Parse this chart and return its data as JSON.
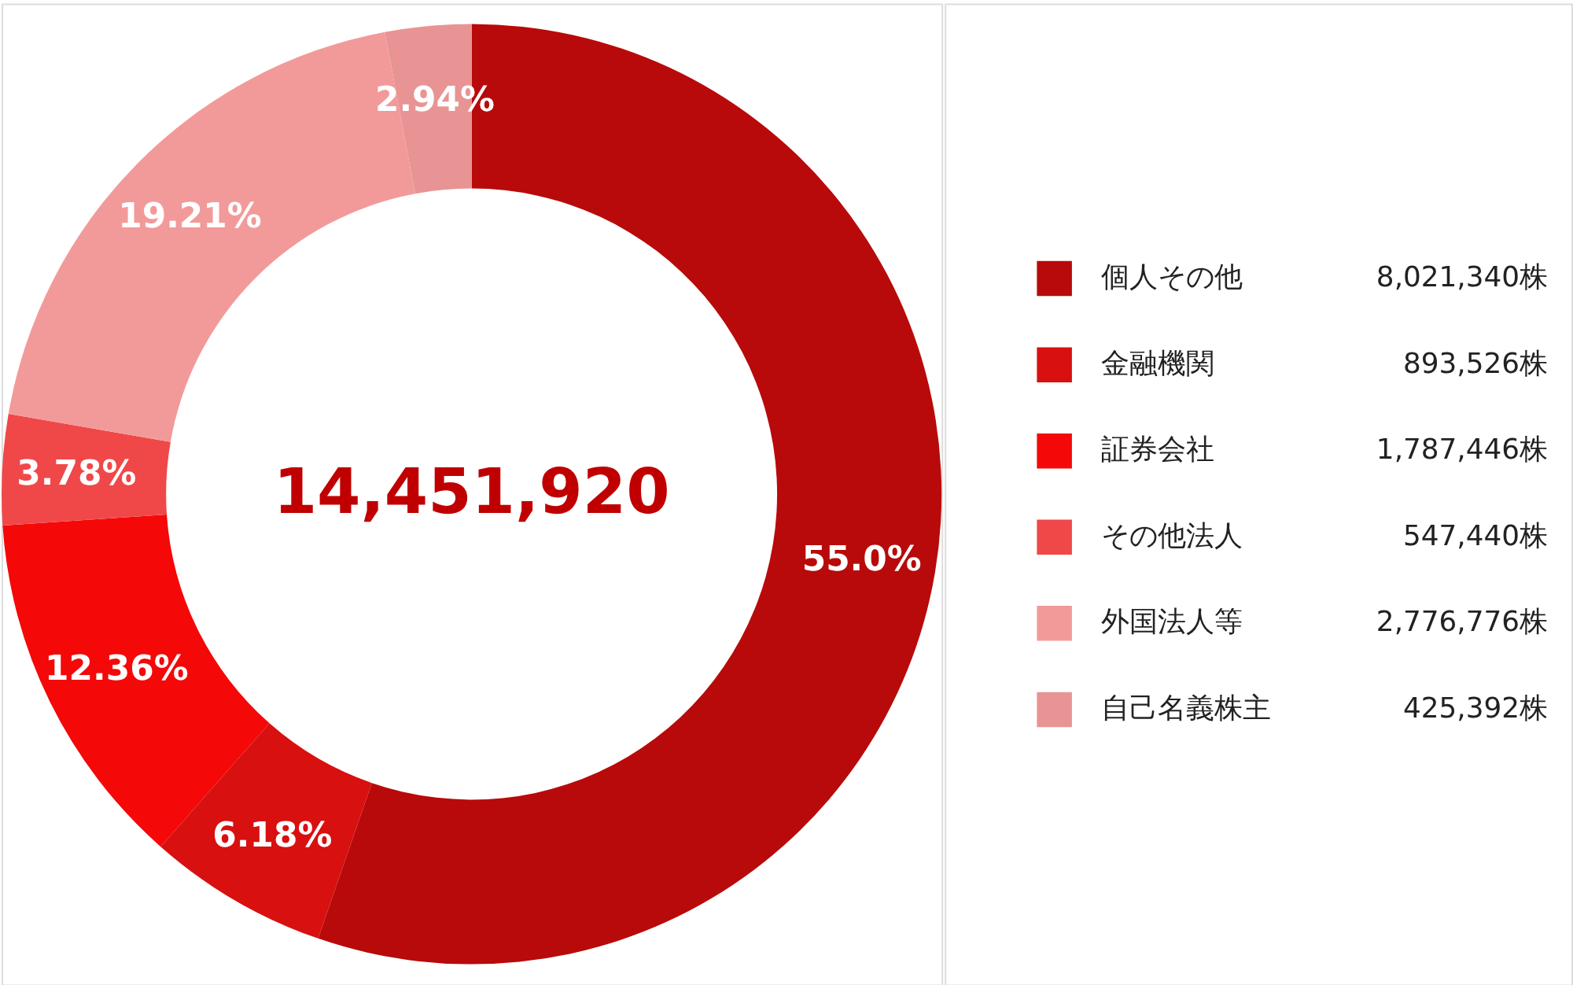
{
  "chart_data": {
    "type": "donut",
    "categories": [
      "個人その他",
      "金融機関",
      "証券会社",
      "その他法人",
      "外国法人等",
      "自己名義株主"
    ],
    "values": [
      55.0,
      6.18,
      12.36,
      3.78,
      19.21,
      2.94
    ],
    "value_labels": [
      "55.0%",
      "6.18%",
      "12.36%",
      "3.78%",
      "19.21%",
      "2.94%"
    ],
    "colors": [
      "#b80a0a",
      "#d81010",
      "#f50808",
      "#f04848",
      "#f29a9a",
      "#e89494"
    ],
    "legend": "right",
    "annotations": [
      "14,451,920",
      "8,021,340株",
      "893,526株",
      "1,787,446株",
      "547,440株",
      "2,776,776株",
      "425,392株"
    ]
  }
}
